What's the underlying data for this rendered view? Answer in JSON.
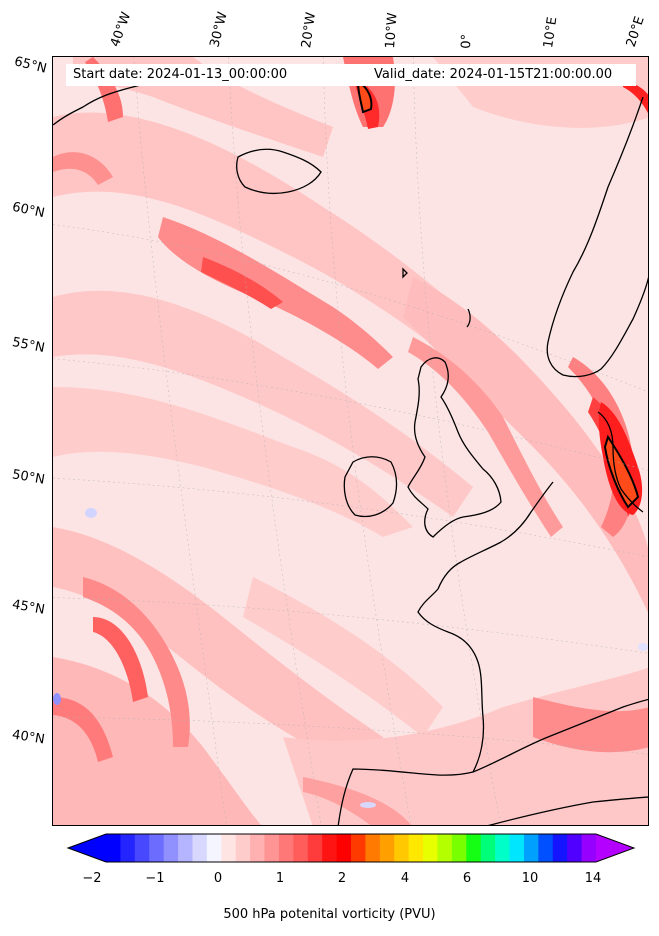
{
  "info": {
    "start": "Start date: 2024-01-13_00:00:00",
    "valid": "Valid_date: 2024-01-15T21:00:00.00"
  },
  "longitude_labels": [
    "40°W",
    "30°W",
    "20°W",
    "10°W",
    "0°",
    "10°E",
    "20°E"
  ],
  "latitude_labels": [
    "65°N",
    "60°N",
    "55°N",
    "50°N",
    "45°N",
    "40°N"
  ],
  "colorbar": {
    "tick_labels": [
      "−2",
      "−1",
      "0",
      "1",
      "2",
      "4",
      "6",
      "10",
      "14"
    ],
    "label": "500 hPa potenital vorticity (PVU)",
    "colors": [
      "#0000ff",
      "#2424ff",
      "#4848ff",
      "#6c6cff",
      "#9090ff",
      "#b4b4ff",
      "#d8d8ff",
      "#f5f5ff",
      "#ffe4e4",
      "#ffcccc",
      "#ffb0b0",
      "#ff9494",
      "#ff7878",
      "#ff5c5c",
      "#ff3c3c",
      "#ff1414",
      "#ff0000",
      "#ff3a00",
      "#ff7a00",
      "#ffa000",
      "#ffc800",
      "#ffe800",
      "#e8ff00",
      "#b4ff00",
      "#78ff00",
      "#14ff14",
      "#00ff78",
      "#00ffc8",
      "#00e6ff",
      "#00a0ff",
      "#0050ff",
      "#1414ff",
      "#5000ff",
      "#9600ff"
    ],
    "extend_low_color": "#0000ff",
    "extend_high_color": "#b400ff"
  },
  "colors": {
    "pv_low": "#fde4e4",
    "pv_mid": "#ffb4b4",
    "pv_high": "#ff5a5a",
    "pv_max": "#ff1e1e",
    "coastline": "#000000"
  }
}
